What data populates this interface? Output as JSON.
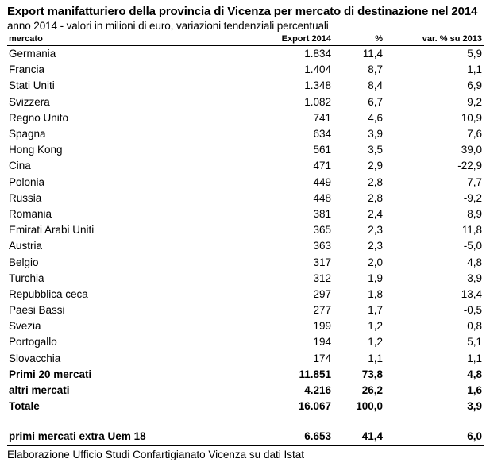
{
  "title": "Export manifatturiero della provincia di Vicenza per mercato di destinazione nel 2014",
  "subtitle": "anno 2014 - valori in milioni di euro, variazioni tendenziali percentuali",
  "headers": [
    "mercato",
    "Export 2014",
    "%",
    "var. % su 2013"
  ],
  "rows": [
    [
      "Germania",
      "1.834",
      "11,4",
      "5,9"
    ],
    [
      "Francia",
      "1.404",
      "8,7",
      "1,1"
    ],
    [
      "Stati Uniti",
      "1.348",
      "8,4",
      "6,9"
    ],
    [
      "Svizzera",
      "1.082",
      "6,7",
      "9,2"
    ],
    [
      "Regno Unito",
      "741",
      "4,6",
      "10,9"
    ],
    [
      "Spagna",
      "634",
      "3,9",
      "7,6"
    ],
    [
      "Hong Kong",
      "561",
      "3,5",
      "39,0"
    ],
    [
      "Cina",
      "471",
      "2,9",
      "-22,9"
    ],
    [
      "Polonia",
      "449",
      "2,8",
      "7,7"
    ],
    [
      "Russia",
      "448",
      "2,8",
      "-9,2"
    ],
    [
      "Romania",
      "381",
      "2,4",
      "8,9"
    ],
    [
      "Emirati Arabi Uniti",
      "365",
      "2,3",
      "11,8"
    ],
    [
      "Austria",
      "363",
      "2,3",
      "-5,0"
    ],
    [
      "Belgio",
      "317",
      "2,0",
      "4,8"
    ],
    [
      "Turchia",
      "312",
      "1,9",
      "3,9"
    ],
    [
      "Repubblica ceca",
      "297",
      "1,8",
      "13,4"
    ],
    [
      "Paesi Bassi",
      "277",
      "1,7",
      "-0,5"
    ],
    [
      "Svezia",
      "199",
      "1,2",
      "0,8"
    ],
    [
      "Portogallo",
      "194",
      "1,2",
      "5,1"
    ],
    [
      "Slovacchia",
      "174",
      "1,1",
      "1,1"
    ]
  ],
  "totals": [
    [
      "Primi 20 mercati",
      "11.851",
      "73,8",
      "4,8"
    ],
    [
      "altri mercati",
      "4.216",
      "26,2",
      "1,6"
    ],
    [
      "Totale",
      "16.067",
      "100,0",
      "3,9"
    ]
  ],
  "extra_row": [
    "primi mercati extra Uem 18",
    "6.653",
    "41,4",
    "6,0"
  ],
  "source": "Elaborazione Ufficio Studi Confartigianato Vicenza su dati Istat"
}
